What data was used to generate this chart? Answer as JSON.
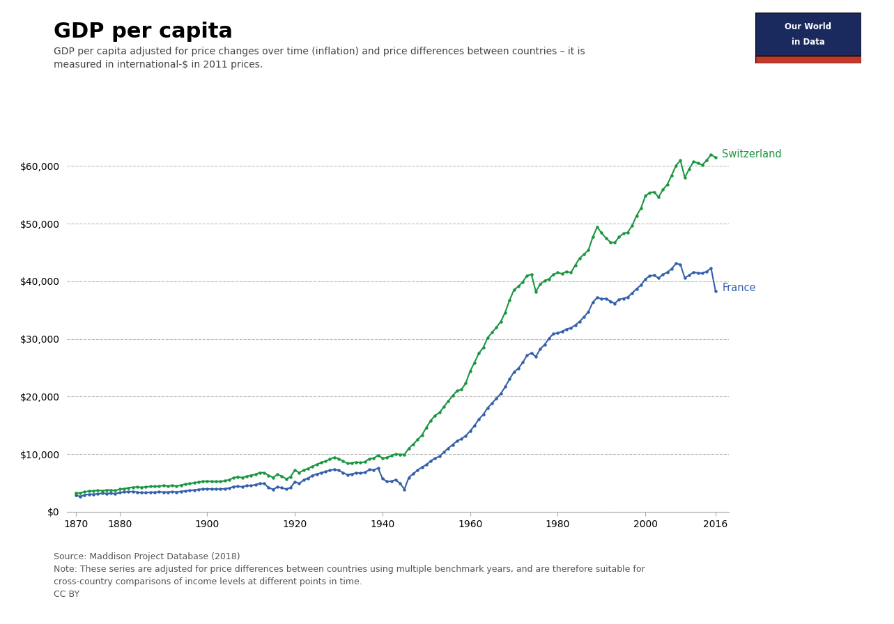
{
  "title": "GDP per capita",
  "subtitle": "GDP per capita adjusted for price changes over time (inflation) and price differences between countries – it is\nmeasured in international-$ in 2011 prices.",
  "source_text": "Source: Maddison Project Database (2018)\nNote: These series are adjusted for price differences between countries using multiple benchmark years, and are therefore suitable for\ncross-country comparisons of income levels at different points in time.\nCC BY",
  "france_color": "#3360a9",
  "switzerland_color": "#1a9641",
  "background_color": "#ffffff",
  "grid_color": "#bbbbbb",
  "xlim": [
    1868,
    2019
  ],
  "ylim": [
    0,
    65000
  ],
  "yticks": [
    0,
    10000,
    20000,
    30000,
    40000,
    50000,
    60000
  ],
  "xticks": [
    1870,
    1880,
    1900,
    1920,
    1940,
    1960,
    1980,
    2000,
    2016
  ],
  "france_years": [
    1870,
    1871,
    1872,
    1873,
    1874,
    1875,
    1876,
    1877,
    1878,
    1879,
    1880,
    1881,
    1882,
    1883,
    1884,
    1885,
    1886,
    1887,
    1888,
    1889,
    1890,
    1891,
    1892,
    1893,
    1894,
    1895,
    1896,
    1897,
    1898,
    1899,
    1900,
    1901,
    1902,
    1903,
    1904,
    1905,
    1906,
    1907,
    1908,
    1909,
    1910,
    1911,
    1912,
    1913,
    1914,
    1915,
    1916,
    1917,
    1918,
    1919,
    1920,
    1921,
    1922,
    1923,
    1924,
    1925,
    1926,
    1927,
    1928,
    1929,
    1930,
    1931,
    1932,
    1933,
    1934,
    1935,
    1936,
    1937,
    1938,
    1939,
    1940,
    1941,
    1942,
    1943,
    1944,
    1945,
    1946,
    1947,
    1948,
    1949,
    1950,
    1951,
    1952,
    1953,
    1954,
    1955,
    1956,
    1957,
    1958,
    1959,
    1960,
    1961,
    1962,
    1963,
    1964,
    1965,
    1966,
    1967,
    1968,
    1969,
    1970,
    1971,
    1972,
    1973,
    1974,
    1975,
    1976,
    1977,
    1978,
    1979,
    1980,
    1981,
    1982,
    1983,
    1984,
    1985,
    1986,
    1987,
    1988,
    1989,
    1990,
    1991,
    1992,
    1993,
    1994,
    1995,
    1996,
    1997,
    1998,
    1999,
    2000,
    2001,
    2002,
    2003,
    2004,
    2005,
    2006,
    2007,
    2008,
    2009,
    2010,
    2011,
    2012,
    2013,
    2014,
    2015,
    2016
  ],
  "france_gdp": [
    2876,
    2620,
    2919,
    3015,
    3026,
    3085,
    3201,
    3159,
    3209,
    3119,
    3296,
    3419,
    3467,
    3497,
    3392,
    3309,
    3318,
    3364,
    3385,
    3434,
    3408,
    3397,
    3472,
    3411,
    3521,
    3596,
    3687,
    3758,
    3867,
    3937,
    3961,
    3934,
    3934,
    3920,
    3987,
    4085,
    4363,
    4395,
    4337,
    4513,
    4533,
    4677,
    4906,
    4869,
    4197,
    3871,
    4279,
    4161,
    3905,
    4177,
    5175,
    4878,
    5497,
    5830,
    6257,
    6544,
    6742,
    6977,
    7180,
    7361,
    7183,
    6759,
    6411,
    6539,
    6740,
    6677,
    6845,
    7283,
    7260,
    7544,
    5765,
    5227,
    5299,
    5526,
    4926,
    3882,
    5941,
    6568,
    7203,
    7741,
    8131,
    8821,
    9264,
    9622,
    10313,
    11012,
    11633,
    12264,
    12644,
    13175,
    14005,
    14933,
    16051,
    16873,
    18018,
    18836,
    19682,
    20508,
    21670,
    23006,
    24254,
    24852,
    25901,
    27143,
    27540,
    26912,
    28230,
    29010,
    30081,
    30888,
    31010,
    31282,
    31697,
    31901,
    32375,
    33029,
    33803,
    34711,
    36354,
    37174,
    36951,
    36991,
    36537,
    36146,
    36856,
    37017,
    37259,
    37967,
    38691,
    39346,
    40397,
    40932,
    41046,
    40558,
    41168,
    41581,
    42162,
    43100,
    42900,
    40578,
    41051,
    41603,
    41421,
    41421,
    41685,
    42252,
    38350
  ],
  "switzerland_years": [
    1870,
    1871,
    1872,
    1873,
    1874,
    1875,
    1876,
    1877,
    1878,
    1879,
    1880,
    1881,
    1882,
    1883,
    1884,
    1885,
    1886,
    1887,
    1888,
    1889,
    1890,
    1891,
    1892,
    1893,
    1894,
    1895,
    1896,
    1897,
    1898,
    1899,
    1900,
    1901,
    1902,
    1903,
    1904,
    1905,
    1906,
    1907,
    1908,
    1909,
    1910,
    1911,
    1912,
    1913,
    1914,
    1915,
    1916,
    1917,
    1918,
    1919,
    1920,
    1921,
    1922,
    1923,
    1924,
    1925,
    1926,
    1927,
    1928,
    1929,
    1930,
    1931,
    1932,
    1933,
    1934,
    1935,
    1936,
    1937,
    1938,
    1939,
    1940,
    1941,
    1942,
    1943,
    1944,
    1945,
    1946,
    1947,
    1948,
    1949,
    1950,
    1951,
    1952,
    1953,
    1954,
    1955,
    1956,
    1957,
    1958,
    1959,
    1960,
    1961,
    1962,
    1963,
    1964,
    1965,
    1966,
    1967,
    1968,
    1969,
    1970,
    1971,
    1972,
    1973,
    1974,
    1975,
    1976,
    1977,
    1978,
    1979,
    1980,
    1981,
    1982,
    1983,
    1984,
    1985,
    1986,
    1987,
    1988,
    1989,
    1990,
    1991,
    1992,
    1993,
    1994,
    1995,
    1996,
    1997,
    1998,
    1999,
    2000,
    2001,
    2002,
    2003,
    2004,
    2005,
    2006,
    2007,
    2008,
    2009,
    2010,
    2011,
    2012,
    2013,
    2014,
    2015,
    2016
  ],
  "switzerland_gdp": [
    3271,
    3247,
    3450,
    3580,
    3620,
    3700,
    3650,
    3750,
    3760,
    3660,
    3900,
    3980,
    4130,
    4250,
    4270,
    4230,
    4310,
    4380,
    4390,
    4430,
    4560,
    4440,
    4560,
    4430,
    4620,
    4780,
    4880,
    5010,
    5140,
    5240,
    5310,
    5230,
    5230,
    5230,
    5360,
    5540,
    5870,
    6070,
    5900,
    6160,
    6310,
    6470,
    6790,
    6750,
    6300,
    5940,
    6450,
    6190,
    5680,
    6070,
    7200,
    6770,
    7220,
    7490,
    7880,
    8200,
    8530,
    8760,
    9100,
    9450,
    9200,
    8790,
    8380,
    8480,
    8600,
    8510,
    8650,
    9200,
    9270,
    9810,
    9280,
    9400,
    9700,
    10010,
    9930,
    9920,
    11000,
    11700,
    12500,
    13300,
    14600,
    15800,
    16700,
    17200,
    18200,
    19200,
    20100,
    21000,
    21200,
    22300,
    24400,
    25900,
    27500,
    28500,
    30200,
    31100,
    32000,
    33000,
    34600,
    36700,
    38500,
    39100,
    39900,
    41000,
    41200,
    38200,
    39500,
    40100,
    40400,
    41200,
    41500,
    41300,
    41700,
    41500,
    42800,
    44000,
    44700,
    45400,
    47700,
    49400,
    48400,
    47500,
    46800,
    46700,
    47700,
    48300,
    48500,
    49700,
    51400,
    52700,
    54800,
    55400,
    55500,
    54600,
    55900,
    56800,
    58400,
    60100,
    61000,
    58000,
    59500,
    60800,
    60500,
    60200,
    61000,
    62000,
    61500
  ]
}
